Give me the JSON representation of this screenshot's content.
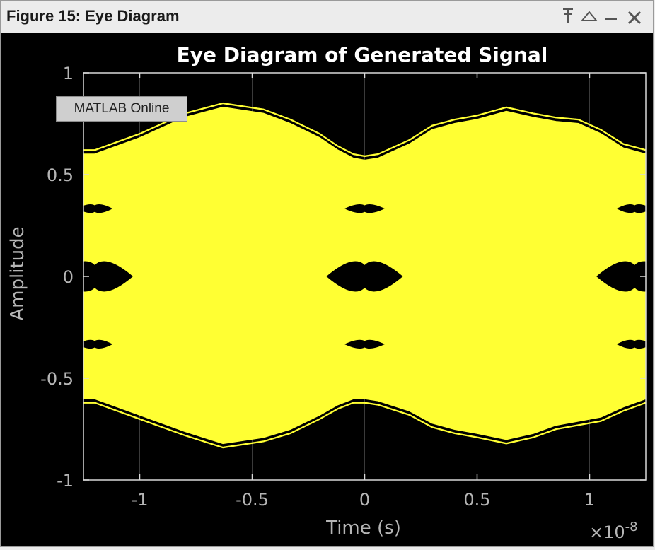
{
  "window": {
    "title": "Figure 15: Eye Diagram",
    "controls": {
      "pin_icon": "pin-icon",
      "undock_icon": "triangle-up-icon",
      "minimize_icon": "minimize-icon",
      "close_icon": "close-icon"
    }
  },
  "tooltip": {
    "text": "MATLAB Online"
  },
  "chart_data": {
    "type": "line",
    "title": "Eye Diagram of Generated Signal",
    "xlabel": "Time (s)",
    "ylabel": "Amplitude",
    "x_exponent_label": "×10",
    "x_exponent_power": "-8",
    "xlim": [
      -1.25,
      1.25
    ],
    "ylim": [
      -1,
      1
    ],
    "xticks": [
      -1,
      -0.5,
      0,
      0.5,
      1
    ],
    "xtick_labels": [
      "-1",
      "-0.5",
      "0",
      "0.5",
      "1"
    ],
    "yticks": [
      -1,
      -0.5,
      0,
      0.5,
      1
    ],
    "ytick_labels": [
      "-1",
      "-0.5",
      "0",
      "0.5",
      "1"
    ],
    "grid": true,
    "colors": {
      "trace": "#ffff33",
      "background": "#000000",
      "axis": "#d9d9d9",
      "grid": "#3a3a3a",
      "tick_text": "#b5b5b5"
    },
    "upper_envelope": {
      "x": [
        -1.25,
        -1.2,
        -1.0,
        -0.8,
        -0.63,
        -0.45,
        -0.33,
        -0.2,
        -0.12,
        -0.05,
        0.0,
        0.06,
        0.2,
        0.3,
        0.4,
        0.5,
        0.63,
        0.75,
        0.85,
        0.95,
        1.05,
        1.15,
        1.25
      ],
      "y": [
        0.6,
        0.6,
        0.68,
        0.78,
        0.83,
        0.8,
        0.75,
        0.68,
        0.62,
        0.58,
        0.57,
        0.58,
        0.65,
        0.72,
        0.75,
        0.77,
        0.81,
        0.78,
        0.76,
        0.75,
        0.7,
        0.63,
        0.6
      ]
    },
    "lower_envelope": {
      "x": [
        -1.25,
        -1.2,
        -1.0,
        -0.8,
        -0.63,
        -0.45,
        -0.33,
        -0.2,
        -0.12,
        -0.05,
        0.0,
        0.06,
        0.2,
        0.3,
        0.4,
        0.5,
        0.63,
        0.75,
        0.85,
        0.95,
        1.05,
        1.15,
        1.25
      ],
      "y": [
        -0.6,
        -0.6,
        -0.68,
        -0.76,
        -0.82,
        -0.79,
        -0.75,
        -0.68,
        -0.63,
        -0.6,
        -0.6,
        -0.61,
        -0.66,
        -0.72,
        -0.75,
        -0.77,
        -0.8,
        -0.77,
        -0.73,
        -0.71,
        -0.69,
        -0.64,
        -0.6
      ]
    },
    "eye_openings": [
      {
        "center_x": -1.2,
        "y": 0.333,
        "half_width": 0.08,
        "half_height": 0.02
      },
      {
        "center_x": -1.2,
        "y": 0.0,
        "half_width": 0.17,
        "half_height": 0.07
      },
      {
        "center_x": -1.2,
        "y": -0.333,
        "half_width": 0.08,
        "half_height": 0.02
      },
      {
        "center_x": 0.0,
        "y": 0.333,
        "half_width": 0.09,
        "half_height": 0.02
      },
      {
        "center_x": 0.0,
        "y": 0.0,
        "half_width": 0.17,
        "half_height": 0.07
      },
      {
        "center_x": 0.0,
        "y": -0.333,
        "half_width": 0.09,
        "half_height": 0.02
      },
      {
        "center_x": 1.2,
        "y": 0.333,
        "half_width": 0.08,
        "half_height": 0.02
      },
      {
        "center_x": 1.2,
        "y": 0.0,
        "half_width": 0.17,
        "half_height": 0.07
      },
      {
        "center_x": 1.2,
        "y": -0.333,
        "half_width": 0.08,
        "half_height": 0.02
      }
    ]
  }
}
